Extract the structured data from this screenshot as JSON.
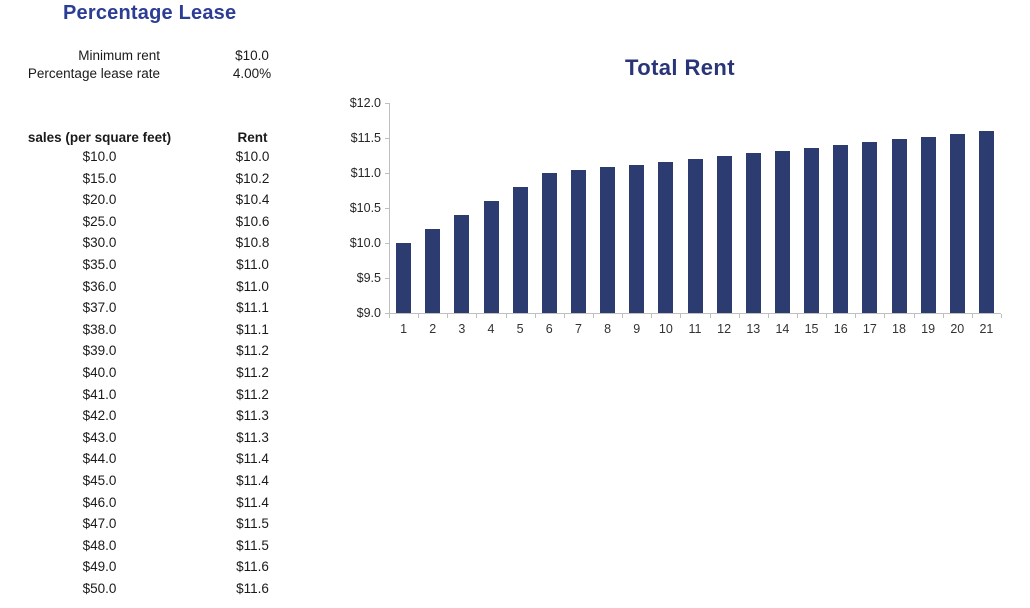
{
  "header": {
    "title": "Percentage Lease"
  },
  "params": [
    {
      "label": "Minimum rent",
      "value": "$10.0"
    },
    {
      "label": "Percentage lease rate",
      "value": "4.00%"
    }
  ],
  "table": {
    "headers": [
      "sales (per square feet)",
      "Rent"
    ],
    "rows": [
      [
        "$10.0",
        "$10.0"
      ],
      [
        "$15.0",
        "$10.2"
      ],
      [
        "$20.0",
        "$10.4"
      ],
      [
        "$25.0",
        "$10.6"
      ],
      [
        "$30.0",
        "$10.8"
      ],
      [
        "$35.0",
        "$11.0"
      ],
      [
        "$36.0",
        "$11.0"
      ],
      [
        "$37.0",
        "$11.1"
      ],
      [
        "$38.0",
        "$11.1"
      ],
      [
        "$39.0",
        "$11.2"
      ],
      [
        "$40.0",
        "$11.2"
      ],
      [
        "$41.0",
        "$11.2"
      ],
      [
        "$42.0",
        "$11.3"
      ],
      [
        "$43.0",
        "$11.3"
      ],
      [
        "$44.0",
        "$11.4"
      ],
      [
        "$45.0",
        "$11.4"
      ],
      [
        "$46.0",
        "$11.4"
      ],
      [
        "$47.0",
        "$11.5"
      ],
      [
        "$48.0",
        "$11.5"
      ],
      [
        "$49.0",
        "$11.6"
      ],
      [
        "$50.0",
        "$11.6"
      ]
    ]
  },
  "chart_data": {
    "type": "bar",
    "title": "Total Rent",
    "categories": [
      "1",
      "2",
      "3",
      "4",
      "5",
      "6",
      "7",
      "8",
      "9",
      "10",
      "11",
      "12",
      "13",
      "14",
      "15",
      "16",
      "17",
      "18",
      "19",
      "20",
      "21"
    ],
    "values": [
      10.0,
      10.2,
      10.4,
      10.6,
      10.8,
      11.0,
      11.04,
      11.08,
      11.12,
      11.16,
      11.2,
      11.24,
      11.28,
      11.32,
      11.36,
      11.4,
      11.44,
      11.48,
      11.52,
      11.56,
      11.6
    ],
    "xlabel": "",
    "ylabel": "",
    "ylim": [
      9.0,
      12.0
    ],
    "y_tick_values": [
      9.0,
      9.5,
      10.0,
      10.5,
      11.0,
      11.5,
      12.0
    ],
    "y_tick_labels": [
      "$9.0",
      "$9.5",
      "$10.0",
      "$10.5",
      "$11.0",
      "$11.5",
      "$12.0"
    ],
    "grid": false,
    "legend": false,
    "bar_color": "#2C3B70",
    "axis_color": "#BFBFBF"
  },
  "colors": {
    "page_title": "#2B3D94",
    "chart_title": "#293578",
    "text": "#1A1A1A"
  }
}
